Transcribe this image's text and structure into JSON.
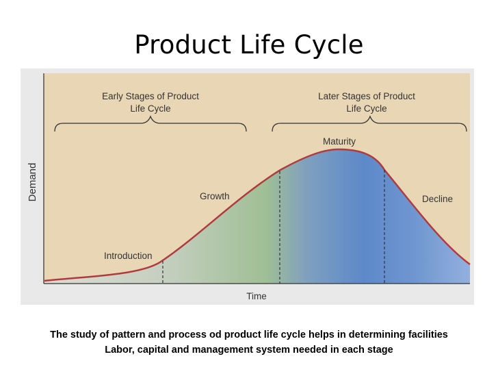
{
  "slide": {
    "title": "Product Life Cycle",
    "caption_line1": "The study of pattern and process od product life cycle helps in determining facilities",
    "caption_line2": "Labor, capital and management system needed in each stage"
  },
  "diagram": {
    "early_stages_line1": "Early Stages of Product",
    "early_stages_line2": "Life Cycle",
    "later_stages_line1": "Later Stages of Product",
    "later_stages_line2": "Life Cycle",
    "stage_introduction": "Introduction",
    "stage_growth": "Growth",
    "stage_maturity": "Maturity",
    "stage_decline": "Decline",
    "y_axis_label": "Demand",
    "x_axis_label": "Time",
    "colors": {
      "background": "#e8d6b5",
      "curve": "#b03a3e",
      "fill_start": "#d6d9ce",
      "fill_growth": "#a9c29a",
      "fill_maturity": "#5c88c8",
      "fill_decline": "#8aaad8"
    }
  }
}
